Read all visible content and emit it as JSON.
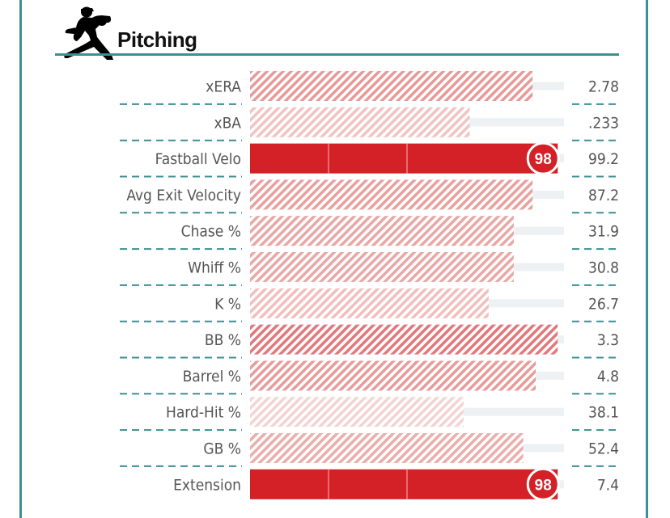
{
  "header": {
    "title": "Pitching",
    "icon": "pitcher-icon"
  },
  "colors": {
    "frame": "#3d8f93",
    "divider": "#3d8f93",
    "track": "#edf1f4",
    "strong": "#d42128",
    "badge_ring": "#ffffff"
  },
  "chart_data": {
    "type": "bar",
    "orientation": "horizontal",
    "title": "Pitching",
    "xlim": [
      0,
      100
    ],
    "categories": [
      "xERA",
      "xBA",
      "Fastball Velo",
      "Avg Exit Velocity",
      "Chase %",
      "Whiff %",
      "K %",
      "BB %",
      "Barrel %",
      "Hard-Hit %",
      "GB %",
      "Extension"
    ],
    "percentiles": [
      90,
      70,
      98,
      90,
      84,
      84,
      76,
      98,
      91,
      68,
      87,
      98
    ],
    "value_labels": [
      "2.78",
      ".233",
      "99.2",
      "87.2",
      "31.9",
      "30.8",
      "26.7",
      "3.3",
      "4.8",
      "38.1",
      "52.4",
      "7.4"
    ],
    "badges": [
      "",
      "",
      "98",
      "",
      "",
      "",
      "",
      "",
      "",
      "",
      "",
      "98"
    ],
    "styles": [
      "hatched",
      "hatched",
      "solid",
      "hatched",
      "hatched",
      "hatched",
      "hatched",
      "hatched",
      "hatched",
      "hatched",
      "hatched",
      "solid"
    ],
    "hatch_colors": [
      "#e79a9a",
      "#f0c4c2",
      "#d42128",
      "#e8a19f",
      "#e9a8a6",
      "#e9a8a6",
      "#f0c0be",
      "#e07a7c",
      "#e79c9c",
      "#f3d4d2",
      "#eaaeac",
      "#d42128"
    ]
  }
}
